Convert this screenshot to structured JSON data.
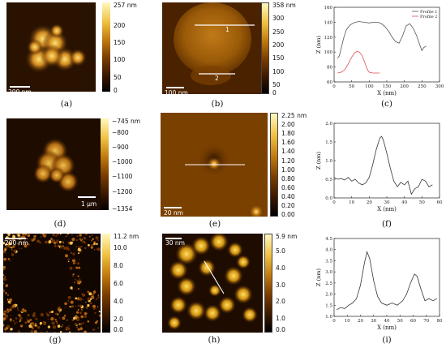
{
  "panels": {
    "a": {
      "caption": "(a)",
      "scale_label": "200 nm",
      "colorbar_ticks": [
        "257 nm",
        "200",
        "150",
        "100",
        "50",
        "0"
      ]
    },
    "b": {
      "caption": "(b)",
      "scale_label": "100 nm",
      "profile_labels": [
        "1",
        "2"
      ],
      "colorbar_ticks": [
        "358 nm",
        "300",
        "250",
        "200",
        "150",
        "100",
        "50",
        "0"
      ]
    },
    "c": {
      "caption": "(c)"
    },
    "d": {
      "caption": "(d)",
      "scale_label": "1 μm",
      "colorbar_ticks": [
        "−745 nm",
        "−800",
        "−900",
        "−1000",
        "−1100",
        "−1200",
        "−1354"
      ]
    },
    "e": {
      "caption": "(e)",
      "scale_label": "20 nm",
      "colorbar_ticks": [
        "2.25 nm",
        "2.00",
        "1.80",
        "1.60",
        "1.40",
        "1.20",
        "1.00",
        "0.80",
        "0.60",
        "0.40",
        "0.20",
        "0.00"
      ]
    },
    "f": {
      "caption": "(f)"
    },
    "g": {
      "caption": "(g)",
      "scale_label": "200 nm",
      "colorbar_ticks": [
        "11.2 nm",
        "10.0",
        "8.0",
        "6.0",
        "4.0",
        "2.0",
        "0.0"
      ]
    },
    "h": {
      "caption": "(h)",
      "scale_label": "30 nm",
      "colorbar_ticks": [
        "5.9 nm",
        "5.0",
        "4.0",
        "3.0",
        "2.0",
        "1.0",
        "0.0"
      ]
    },
    "i": {
      "caption": "(i)"
    }
  },
  "chart_data": [
    {
      "panel": "c",
      "type": "line",
      "xlabel": "X (nm)",
      "ylabel": "Z (nm)",
      "xlim": [
        0,
        300
      ],
      "ylim": [
        60,
        160
      ],
      "xticks": [
        0,
        50,
        100,
        150,
        200,
        250,
        300
      ],
      "yticks": [
        60,
        80,
        100,
        120,
        140,
        160
      ],
      "legend": [
        "Profile 1",
        "Profile 2"
      ],
      "legend_position": "top-right",
      "series": [
        {
          "name": "Profile 1",
          "color": "#555555",
          "x": [
            10,
            15,
            20,
            28,
            35,
            45,
            55,
            70,
            85,
            100,
            112,
            125,
            135,
            145,
            155,
            165,
            175,
            185,
            195,
            205,
            215,
            225,
            235,
            242,
            250,
            255,
            262
          ],
          "y": [
            92,
            95,
            105,
            120,
            130,
            136,
            139,
            141,
            140,
            139,
            140,
            140,
            138,
            134,
            128,
            120,
            114,
            112,
            122,
            135,
            138,
            132,
            122,
            112,
            102,
            106,
            108
          ]
        },
        {
          "name": "Profile 2",
          "color": "#e05050",
          "x": [
            10,
            20,
            30,
            40,
            50,
            58,
            65,
            72,
            80,
            88,
            95,
            100,
            110,
            120,
            130
          ],
          "y": [
            72,
            73,
            76,
            84,
            93,
            99,
            101,
            100,
            95,
            85,
            76,
            73,
            72,
            72,
            72
          ]
        }
      ]
    },
    {
      "panel": "f",
      "type": "line",
      "xlabel": "X (nm)",
      "ylabel": "Z (nm)",
      "xlim": [
        0,
        60
      ],
      "ylim": [
        0,
        2.0
      ],
      "xticks": [
        0,
        10,
        20,
        30,
        40,
        50,
        60
      ],
      "yticks": [
        0.0,
        0.5,
        1.0,
        1.5,
        2.0
      ],
      "series": [
        {
          "color": "#333333",
          "x": [
            0,
            2,
            4,
            6,
            8,
            10,
            12,
            14,
            16,
            18,
            20,
            22,
            24,
            26,
            27,
            28,
            30,
            32,
            34,
            36,
            38,
            40,
            42,
            44,
            46,
            48,
            50,
            52,
            54,
            56
          ],
          "y": [
            0.55,
            0.5,
            0.52,
            0.48,
            0.55,
            0.45,
            0.5,
            0.4,
            0.35,
            0.4,
            0.55,
            0.9,
            1.3,
            1.6,
            1.65,
            1.55,
            1.2,
            0.8,
            0.45,
            0.3,
            0.42,
            0.35,
            0.45,
            0.1,
            0.25,
            0.3,
            0.5,
            0.45,
            0.3,
            0.35
          ]
        }
      ]
    },
    {
      "panel": "i",
      "type": "line",
      "xlabel": "X (nm)",
      "ylabel": "Z (nm)",
      "xlim": [
        0,
        80
      ],
      "ylim": [
        1.0,
        4.5
      ],
      "xticks": [
        0,
        10,
        20,
        30,
        40,
        50,
        60,
        70,
        80
      ],
      "yticks": [
        1.0,
        1.5,
        2.0,
        2.5,
        3.0,
        3.5,
        4.0,
        4.5
      ],
      "series": [
        {
          "color": "#333333",
          "x": [
            2,
            5,
            8,
            11,
            14,
            17,
            20,
            23,
            25,
            27,
            30,
            33,
            36,
            40,
            44,
            48,
            52,
            55,
            58,
            61,
            63,
            66,
            69,
            72,
            75,
            78
          ],
          "y": [
            1.3,
            1.4,
            1.35,
            1.5,
            1.6,
            1.8,
            2.4,
            3.4,
            3.9,
            3.6,
            2.6,
            1.9,
            1.6,
            1.5,
            1.6,
            1.5,
            1.7,
            2.0,
            2.5,
            2.9,
            2.8,
            2.2,
            1.7,
            1.8,
            1.7,
            1.8
          ]
        }
      ]
    }
  ]
}
